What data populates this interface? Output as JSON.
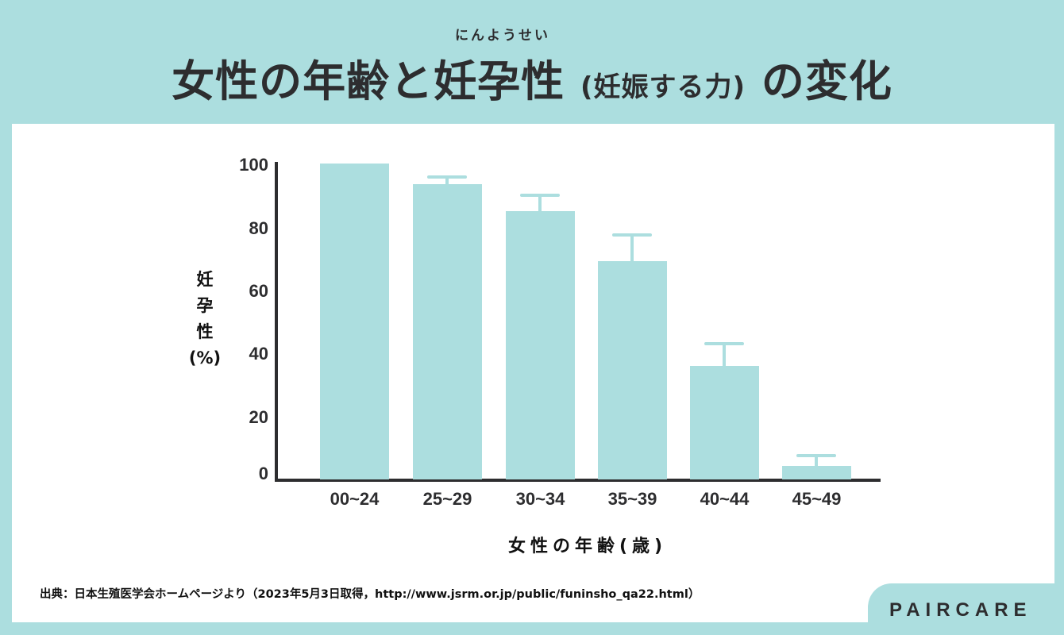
{
  "header": {
    "ruby": "にんようせい",
    "title_main": "女性の年齢と妊孕性",
    "title_paren": "(妊娠する力)",
    "title_end": "の変化"
  },
  "colors": {
    "background": "#acdedf",
    "bar": "#acdedf",
    "axis": "#2d2d2f",
    "text": "#2d2d2f"
  },
  "chart_data": {
    "type": "bar",
    "title": "女性の年齢と妊孕性 (妊娠する力) の変化",
    "xlabel": "女性の年齢(歳)",
    "ylabel": "妊孕性(%)",
    "categories": [
      "00~24",
      "25~29",
      "30~34",
      "35~39",
      "40~44",
      "45~49"
    ],
    "values": [
      100,
      93.5,
      85,
      69,
      36,
      4.3
    ],
    "error_upper": [
      null,
      95.7,
      90,
      77.5,
      43,
      7.5
    ],
    "yticks": [
      "100",
      "80",
      "60",
      "40",
      "20",
      "0"
    ],
    "ylim": [
      0,
      100
    ],
    "grid": false,
    "legend": null
  },
  "axis": {
    "ylabel_chars": [
      "妊",
      "孕",
      "性",
      "(%)"
    ],
    "xlabel": "女性の年齢(歳)"
  },
  "footer": {
    "source": "出典：日本生殖医学会ホームページより（2023年5月3日取得，http://www.jsrm.or.jp/public/funinsho_qa22.html）",
    "brand": "PAIRCARE"
  }
}
